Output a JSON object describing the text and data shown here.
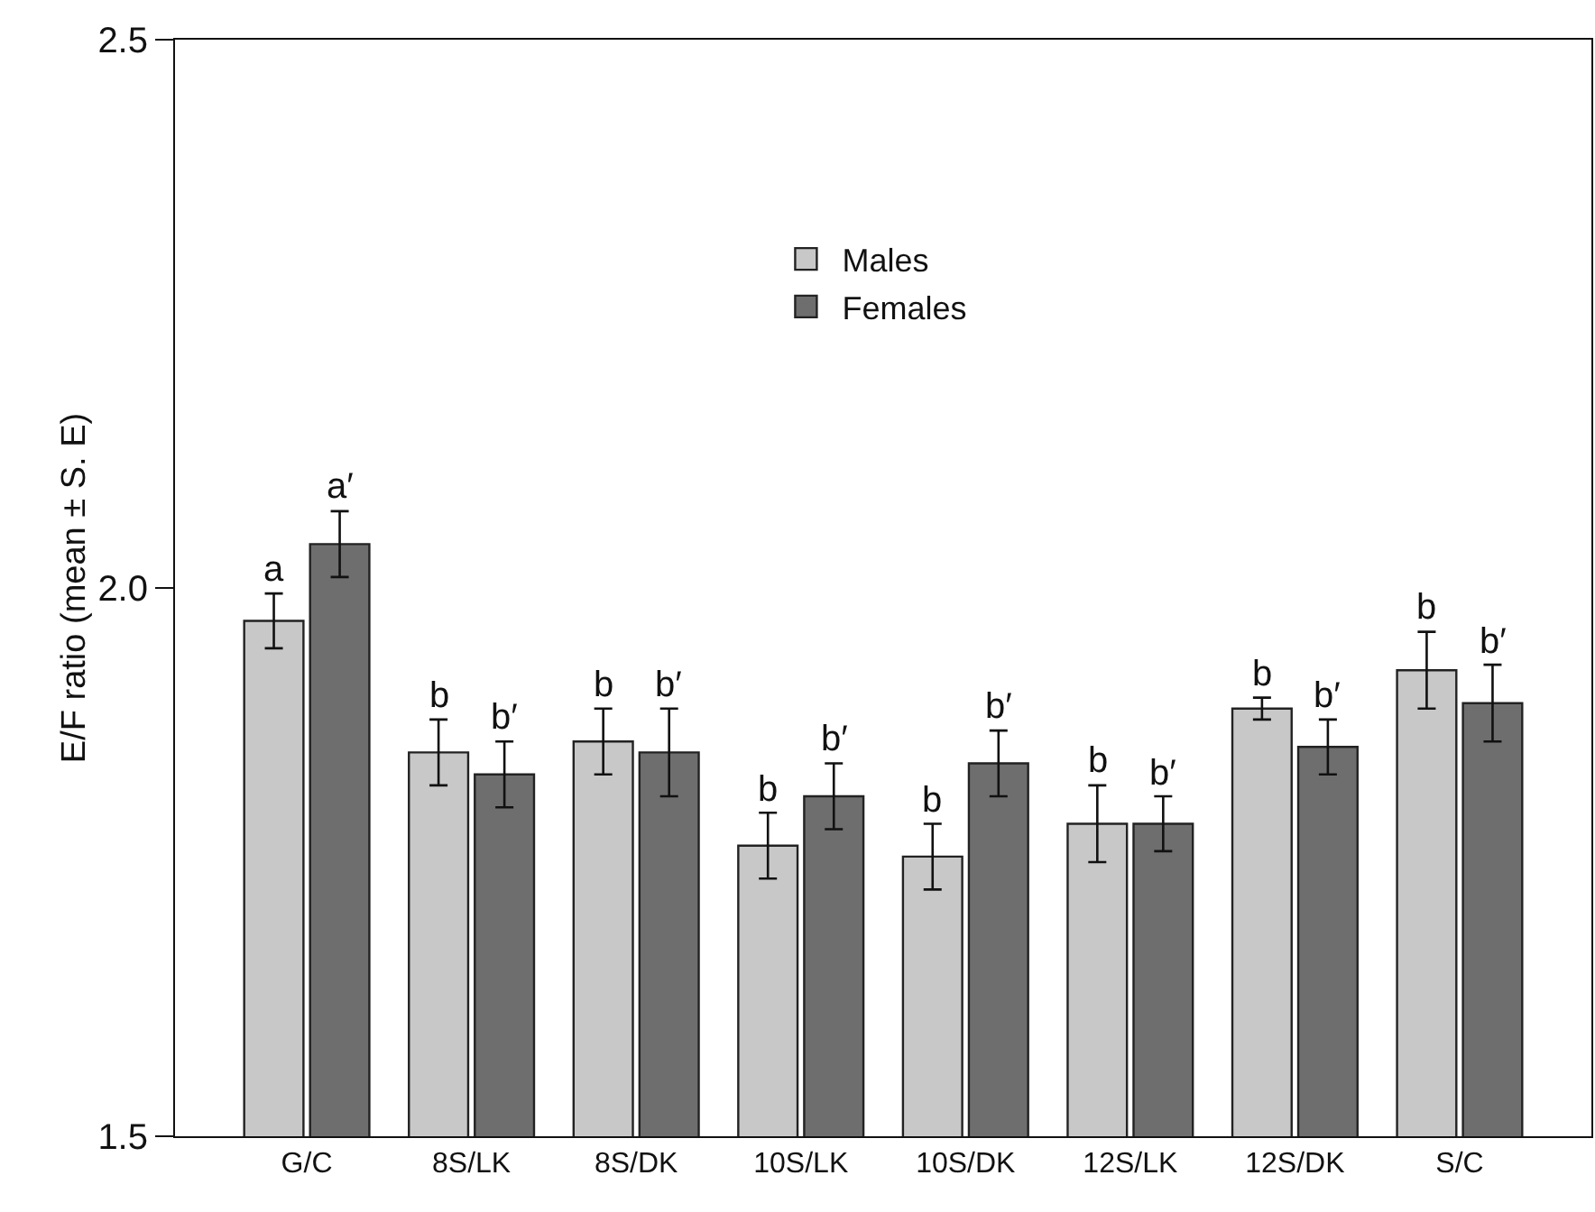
{
  "chart_data": {
    "type": "bar",
    "ylabel": "E/F ratio (mean ± S. E)",
    "categories": [
      "G/C",
      "8S/LK",
      "8S/DK",
      "10S/LK",
      "10S/DK",
      "12S/LK",
      "12S/DK",
      "S/C"
    ],
    "series": [
      {
        "name": "Males",
        "color": "#c8c8c8",
        "values": [
          1.97,
          1.85,
          1.86,
          1.765,
          1.755,
          1.785,
          1.89,
          1.925
        ],
        "errors": [
          0.025,
          0.03,
          0.03,
          0.03,
          0.03,
          0.035,
          0.01,
          0.035
        ]
      },
      {
        "name": "Females",
        "color": "#6e6e6e",
        "values": [
          2.04,
          1.83,
          1.85,
          1.81,
          1.84,
          1.785,
          1.855,
          1.895
        ],
        "errors": [
          0.03,
          0.03,
          0.04,
          0.03,
          0.03,
          0.025,
          0.025,
          0.035
        ]
      }
    ],
    "ylim": [
      1.5,
      2.5
    ],
    "yticks": [
      1.5,
      {
        "value": 2,
        "label": "2.0"
      },
      2.5
    ],
    "grid": false,
    "legend": "top",
    "annotations": [
      {
        "text": "a",
        "x": "G/C",
        "y": 1.97
      },
      {
        "text": "a′",
        "x": "G/C",
        "y": 2.04
      },
      {
        "text": "b",
        "x": "8S/LK",
        "y": 1.85
      },
      {
        "text": "b′",
        "x": "8S/LK",
        "y": 1.83
      },
      {
        "text": "b",
        "x": "8S/DK",
        "y": 1.86
      },
      {
        "text": "b′",
        "x": "8S/DK",
        "y": 1.85
      },
      {
        "text": "b",
        "x": "10S/LK",
        "y": 1.765
      },
      {
        "text": "b′",
        "x": "10S/LK",
        "y": 1.81
      },
      {
        "text": "b",
        "x": "10S/DK",
        "y": 1.755
      },
      {
        "text": "b′",
        "x": "10S/DK",
        "y": 1.84
      },
      {
        "text": "b",
        "x": "12S/LK",
        "y": 1.785
      },
      {
        "text": "b′",
        "x": "12S/LK",
        "y": 1.785
      },
      {
        "text": "b",
        "x": "12S/DK",
        "y": 1.89
      },
      {
        "text": "b′",
        "x": "12S/DK",
        "y": 1.855
      },
      {
        "text": "b",
        "x": "S/C",
        "y": 1.925
      },
      {
        "text": "b′",
        "x": "S/C",
        "y": 1.895
      }
    ]
  }
}
